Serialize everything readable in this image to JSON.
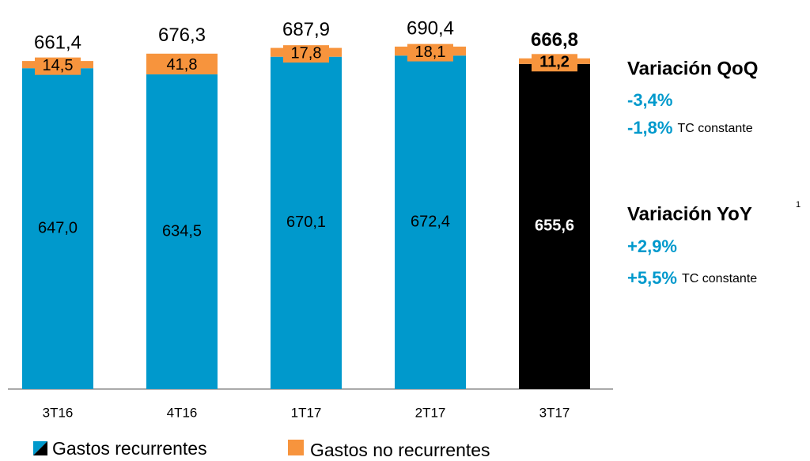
{
  "chart_data": {
    "type": "stacked_bar",
    "categories": [
      "3T16",
      "4T16",
      "1T17",
      "2T17",
      "3T17"
    ],
    "series": [
      {
        "name": "Gastos recurrentes",
        "color": "#0099cc",
        "colors": [
          "#0099cc",
          "#0099cc",
          "#0099cc",
          "#0099cc",
          "#000000"
        ],
        "values": [
          647.0,
          634.5,
          670.1,
          672.4,
          655.6
        ],
        "value_labels": [
          "647,0",
          "634,5",
          "670,1",
          "672,4",
          "655,6"
        ]
      },
      {
        "name": "Gastos no recurrentes",
        "color": "#f7943d",
        "values": [
          14.5,
          41.8,
          17.8,
          18.1,
          11.2
        ],
        "value_labels": [
          "14,5",
          "41,8",
          "17,8",
          "18,1",
          "11,2"
        ]
      }
    ],
    "totals": [
      661.4,
      676.3,
      687.9,
      690.4,
      666.8
    ],
    "total_labels": [
      "661,4",
      "676,3",
      "687,9",
      "690,4",
      "666,8"
    ],
    "annotations": {
      "qoq": {
        "title": "Variación QoQ",
        "value": "-3,4%",
        "constant": "-1,8%",
        "constant_note": "TC constante"
      },
      "yoy": {
        "title": "Variación YoY",
        "footnote": "1",
        "value": "+2,9%",
        "constant": "+5,5%",
        "constant_note": "TC constante"
      }
    }
  }
}
